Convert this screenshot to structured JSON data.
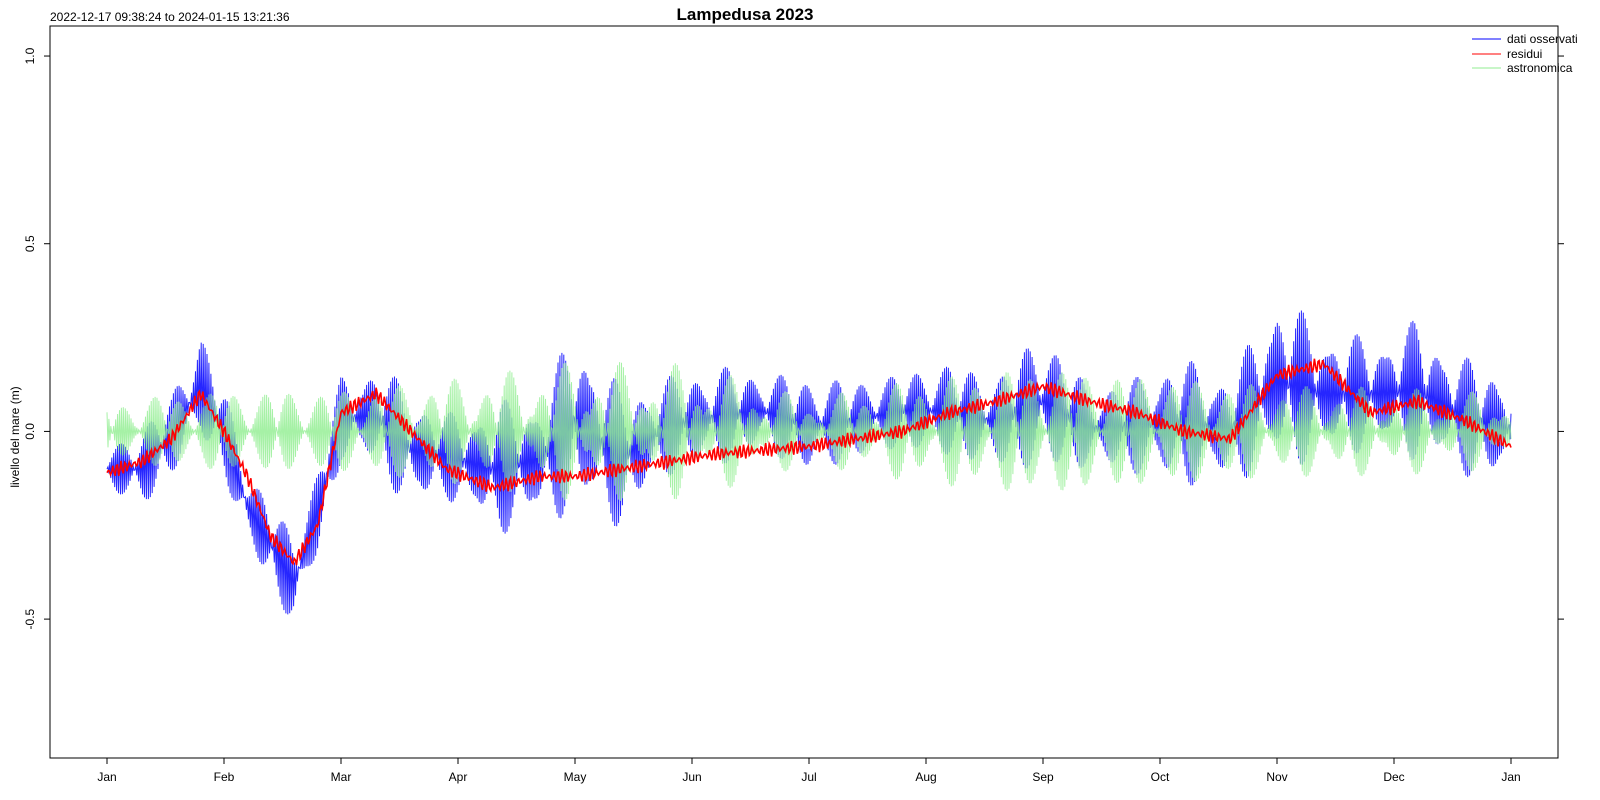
{
  "chart_data": {
    "type": "line",
    "title": "Lampedusa 2023",
    "subtitle": "2022-12-17 09:38:24 to 2024-01-15 13:21:36",
    "xlabel": "",
    "ylabel": "livello del mare (m)",
    "x_ticks": [
      "Jan",
      "Feb",
      "Mar",
      "Apr",
      "May",
      "Jun",
      "Jul",
      "Aug",
      "Sep",
      "Oct",
      "Nov",
      "Dec",
      "Jan"
    ],
    "x_tick_months": [
      0,
      1,
      2,
      3,
      4,
      5,
      6,
      7,
      8,
      9,
      10,
      11,
      12
    ],
    "x_data_range_months": [
      0,
      12
    ],
    "y_ticks": [
      -0.5,
      0.0,
      0.5,
      1.0
    ],
    "y_tick_labels": [
      "-0.5",
      "0.0",
      "0.5",
      "1.0"
    ],
    "ylim": [
      -0.87,
      1.08
    ],
    "grid": false,
    "legend_position": "top-right",
    "series": [
      {
        "name": "dati osservati",
        "color": "#0000ff",
        "envelope_x_months": [
          0,
          0.3,
          0.55,
          0.8,
          1.0,
          1.2,
          1.4,
          1.6,
          1.8,
          2.0,
          2.3,
          2.6,
          2.9,
          3.3,
          3.7,
          4.0,
          4.4,
          4.8,
          5.2,
          5.6,
          6.0,
          6.4,
          6.8,
          7.2,
          7.6,
          8.0,
          8.4,
          8.8,
          9.2,
          9.6,
          10.0,
          10.4,
          10.8,
          11.2,
          11.6,
          12.0
        ],
        "envelope_min": [
          -0.15,
          -0.22,
          -0.12,
          -0.03,
          -0.12,
          -0.32,
          -0.42,
          -0.53,
          -0.35,
          -0.08,
          -0.1,
          -0.22,
          -0.18,
          -0.28,
          -0.25,
          -0.22,
          -0.26,
          -0.12,
          -0.1,
          -0.05,
          -0.12,
          -0.08,
          -0.05,
          -0.08,
          -0.1,
          -0.12,
          -0.1,
          -0.12,
          -0.15,
          -0.14,
          -0.1,
          -0.08,
          -0.05,
          -0.08,
          -0.12,
          -0.16
        ],
        "envelope_max": [
          -0.05,
          0.02,
          0.1,
          0.28,
          0.12,
          -0.08,
          -0.18,
          -0.28,
          -0.08,
          0.15,
          0.18,
          0.12,
          0.05,
          0.08,
          0.1,
          0.28,
          0.12,
          0.15,
          0.18,
          0.16,
          0.15,
          0.14,
          0.16,
          0.19,
          0.15,
          0.28,
          0.12,
          0.15,
          0.2,
          0.15,
          0.37,
          0.28,
          0.25,
          0.3,
          0.2,
          0.17
        ]
      },
      {
        "name": "residui",
        "color": "#ff0000",
        "x_months": [
          0,
          0.3,
          0.55,
          0.8,
          1.0,
          1.2,
          1.4,
          1.6,
          1.8,
          2.0,
          2.3,
          2.6,
          2.9,
          3.3,
          3.7,
          4.0,
          4.4,
          4.8,
          5.2,
          5.6,
          6.0,
          6.4,
          6.8,
          7.2,
          7.6,
          8.0,
          8.4,
          8.8,
          9.2,
          9.6,
          10.0,
          10.4,
          10.8,
          11.2,
          11.6,
          12.0
        ],
        "values": [
          -0.11,
          -0.08,
          -0.02,
          0.1,
          0.0,
          -0.12,
          -0.28,
          -0.35,
          -0.25,
          0.05,
          0.1,
          0.0,
          -0.1,
          -0.15,
          -0.12,
          -0.12,
          -0.1,
          -0.08,
          -0.06,
          -0.05,
          -0.04,
          -0.02,
          0.0,
          0.05,
          0.08,
          0.12,
          0.08,
          0.05,
          0.0,
          -0.02,
          0.15,
          0.18,
          0.05,
          0.08,
          0.03,
          -0.04
        ]
      },
      {
        "name": "astronomica",
        "color": "#90ee90",
        "amplitude_x_months": [
          0,
          1,
          2,
          3,
          4,
          5,
          6,
          7,
          8,
          9,
          10,
          11,
          12
        ],
        "amplitude_m": [
          0.09,
          0.12,
          0.12,
          0.15,
          0.19,
          0.18,
          0.09,
          0.15,
          0.19,
          0.16,
          0.13,
          0.12,
          0.1
        ],
        "spring_neap_period_days": 14.77
      }
    ]
  }
}
